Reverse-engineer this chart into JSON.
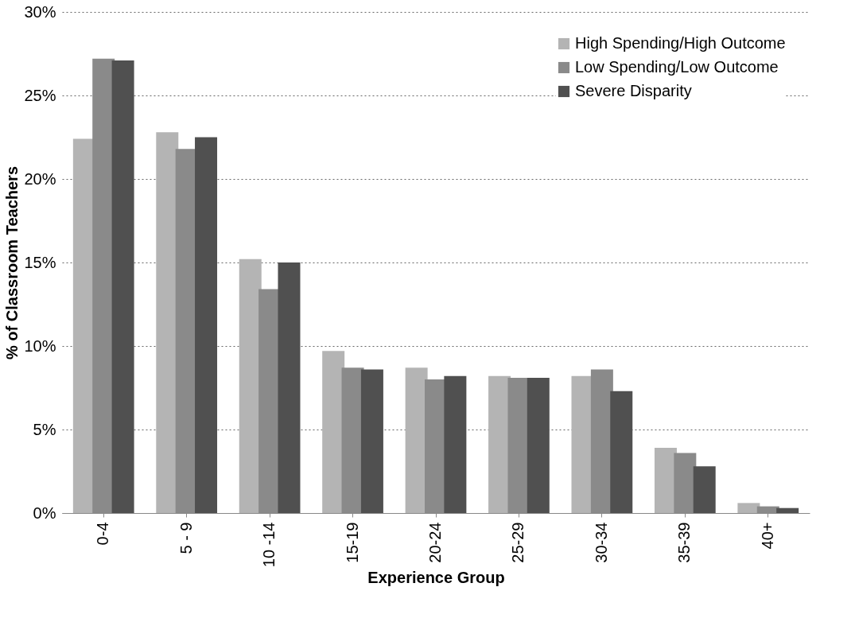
{
  "chart_data": {
    "type": "bar",
    "xlabel": "Experience Group",
    "ylabel": "% of Classroom Teachers",
    "categories": [
      "0-4",
      "5 - 9",
      "10 -14",
      "15-19",
      "20-24",
      "25-29",
      "30-34",
      "35-39",
      "40+"
    ],
    "series": [
      {
        "name": "High Spending/High Outcome",
        "color": "#b4b4b4",
        "values": [
          22.4,
          22.8,
          15.2,
          9.7,
          8.7,
          8.2,
          8.2,
          3.9,
          0.6
        ]
      },
      {
        "name": "Low Spending/Low Outcome",
        "color": "#8a8a8a",
        "values": [
          27.2,
          21.8,
          13.4,
          8.7,
          8.0,
          8.1,
          8.6,
          3.6,
          0.4
        ]
      },
      {
        "name": "Severe Disparity",
        "color": "#505050",
        "values": [
          27.1,
          22.5,
          15.0,
          8.6,
          8.2,
          8.1,
          7.3,
          2.8,
          0.3
        ]
      }
    ],
    "ylim": [
      0,
      30
    ],
    "yticks": [
      {
        "value": 0,
        "label": "0%"
      },
      {
        "value": 5,
        "label": "5%"
      },
      {
        "value": 10,
        "label": "10%"
      },
      {
        "value": 15,
        "label": "15%"
      },
      {
        "value": 20,
        "label": "20%"
      },
      {
        "value": 25,
        "label": "25%"
      },
      {
        "value": 30,
        "label": "30%"
      }
    ],
    "grid": "y",
    "legend": "top right"
  }
}
